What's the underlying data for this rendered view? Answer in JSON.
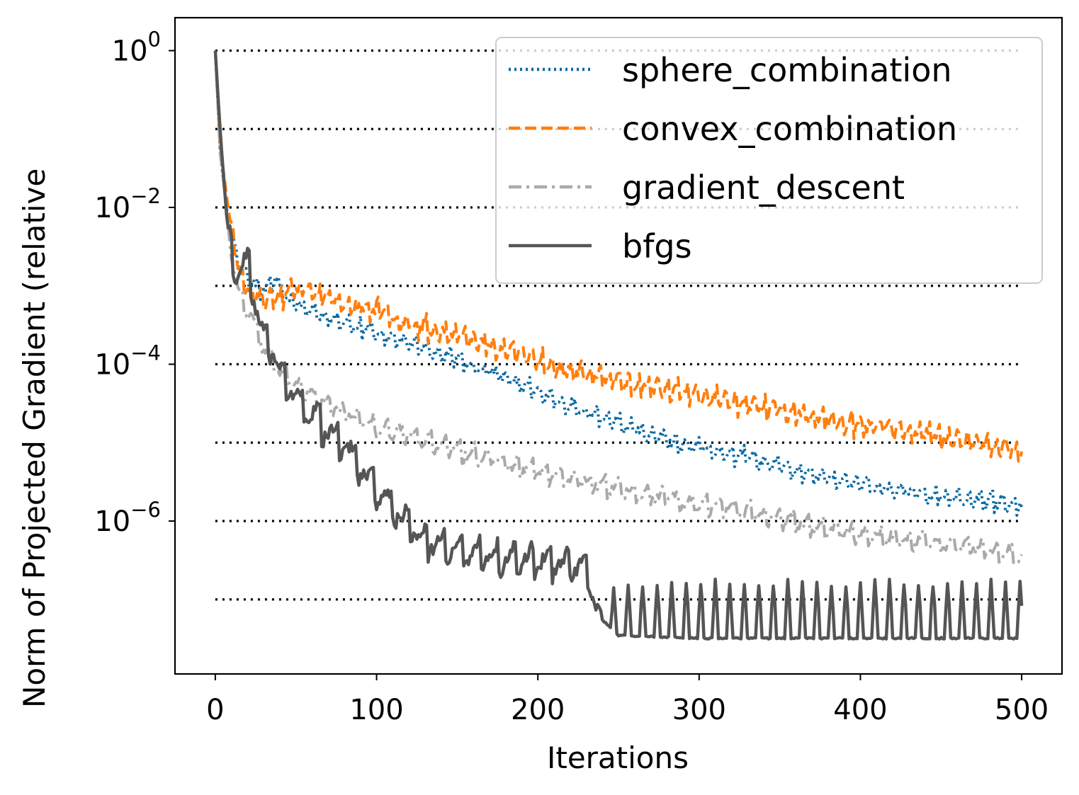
{
  "chart_data": {
    "type": "line",
    "title": "",
    "xlabel": "Iterations",
    "ylabel": "Norm of Projected Gradient (relative",
    "x_scale": "linear",
    "y_scale": "log",
    "xlim": [
      -25,
      525
    ],
    "ylim_exponent": [
      -7.95,
      0.42
    ],
    "x_ticks": [
      0,
      100,
      200,
      300,
      400,
      500
    ],
    "x_tick_labels": [
      "0",
      "100",
      "200",
      "300",
      "400",
      "500"
    ],
    "y_ticks": [
      1,
      0.01,
      0.0001,
      1e-06
    ],
    "y_tick_labels": [
      {
        "base": "10",
        "exp": "0"
      },
      {
        "base": "10",
        "exp": "−2"
      },
      {
        "base": "10",
        "exp": "−4"
      },
      {
        "base": "10",
        "exp": "−6"
      }
    ],
    "reference_lines": {
      "values": [
        1,
        0.1,
        0.01,
        0.001,
        0.0001,
        1e-05,
        1e-06,
        1e-07
      ],
      "x_range": [
        0,
        500
      ],
      "color": "#000000",
      "style": "dotted"
    },
    "legend_position": "upper-right",
    "series": [
      {
        "name": "sphere_combination",
        "color": "#0a6aa1",
        "style": "dotted",
        "anchors": [
          [
            0,
            1.0
          ],
          [
            3,
            0.05
          ],
          [
            7,
            0.01
          ],
          [
            12,
            0.003
          ],
          [
            20,
            0.0013
          ],
          [
            30,
            0.0009
          ],
          [
            37,
            0.0013
          ],
          [
            45,
            0.0007
          ],
          [
            60,
            0.0005
          ],
          [
            80,
            0.00035
          ],
          [
            100,
            0.00026
          ],
          [
            120,
            0.00019
          ],
          [
            150,
            0.00012
          ],
          [
            180,
            7e-05
          ],
          [
            200,
            4.5e-05
          ],
          [
            230,
            2.6e-05
          ],
          [
            260,
            1.5e-05
          ],
          [
            290,
            9.5e-06
          ],
          [
            320,
            7.5e-06
          ],
          [
            350,
            5.2e-06
          ],
          [
            380,
            3.6e-06
          ],
          [
            420,
            2.6e-06
          ],
          [
            460,
            2e-06
          ],
          [
            500,
            1.7e-06
          ]
        ],
        "noise": 0.13,
        "period": 7,
        "jitter": 0.06,
        "seed": 11
      },
      {
        "name": "convex_combination",
        "color": "#ff7f0e",
        "style": "dashed",
        "anchors": [
          [
            0,
            1.0
          ],
          [
            3,
            0.06
          ],
          [
            8,
            0.01
          ],
          [
            14,
            0.0018
          ],
          [
            20,
            0.0009
          ],
          [
            30,
            0.0007
          ],
          [
            50,
            0.0009
          ],
          [
            60,
            0.00085
          ],
          [
            80,
            0.0006
          ],
          [
            100,
            0.0005
          ],
          [
            120,
            0.00035
          ],
          [
            150,
            0.00024
          ],
          [
            180,
            0.00016
          ],
          [
            200,
            0.00012
          ],
          [
            220,
            8.5e-05
          ],
          [
            250,
            6.5e-05
          ],
          [
            280,
            5e-05
          ],
          [
            300,
            4.2e-05
          ],
          [
            330,
            3.2e-05
          ],
          [
            360,
            2.5e-05
          ],
          [
            400,
            1.8e-05
          ],
          [
            440,
            1.35e-05
          ],
          [
            480,
            9.5e-06
          ],
          [
            500,
            8.5e-06
          ]
        ],
        "noise": 0.16,
        "period": 6,
        "jitter": 0.07,
        "seed": 23
      },
      {
        "name": "gradient_descent",
        "color": "#aaaaaa",
        "style": "dashdot",
        "anchors": [
          [
            0,
            1.0
          ],
          [
            3,
            0.05
          ],
          [
            8,
            0.006
          ],
          [
            12,
            0.0015
          ],
          [
            17,
            0.0006
          ],
          [
            22,
            0.0004
          ],
          [
            30,
            0.00017
          ],
          [
            40,
            8e-05
          ],
          [
            50,
            5.5e-05
          ],
          [
            60,
            4e-05
          ],
          [
            80,
            2.5e-05
          ],
          [
            100,
            1.6e-05
          ],
          [
            120,
            1.3e-05
          ],
          [
            150,
            8.5e-06
          ],
          [
            180,
            5.5e-06
          ],
          [
            200,
            4.3e-06
          ],
          [
            230,
            3.3e-06
          ],
          [
            250,
            2.7e-06
          ],
          [
            300,
            1.7e-06
          ],
          [
            350,
            1.1e-06
          ],
          [
            400,
            7e-07
          ],
          [
            450,
            5.3e-07
          ],
          [
            500,
            3.7e-07
          ]
        ],
        "noise": 0.16,
        "period": 9,
        "jitter": 0.06,
        "seed": 37
      },
      {
        "name": "bfgs",
        "color": "#555555",
        "style": "solid",
        "anchors": [
          [
            0,
            1.0
          ],
          [
            2,
            0.2
          ],
          [
            4,
            0.05
          ],
          [
            7,
            0.008
          ],
          [
            10,
            0.0025
          ],
          [
            13,
            0.0015
          ],
          [
            17,
            0.002
          ],
          [
            20,
            0.0018
          ],
          [
            25,
            0.0006
          ],
          [
            30,
            0.00025
          ],
          [
            35,
            0.0002
          ],
          [
            40,
            8e-05
          ],
          [
            45,
            6e-05
          ],
          [
            50,
            4e-05
          ],
          [
            60,
            2.5e-05
          ],
          [
            70,
            1.5e-05
          ],
          [
            80,
            1e-05
          ],
          [
            90,
            5e-06
          ],
          [
            100,
            2.5e-06
          ],
          [
            110,
            1.5e-06
          ],
          [
            130,
            6e-07
          ],
          [
            150,
            4.5e-07
          ],
          [
            180,
            3.5e-07
          ],
          [
            200,
            3.5e-07
          ],
          [
            230,
            2.5e-07
          ],
          [
            238,
            6e-08
          ],
          [
            250,
            3.5e-08
          ],
          [
            300,
            3.2e-08
          ],
          [
            500,
            3.2e-08
          ]
        ],
        "noise": 0.3,
        "period": 11,
        "jitter": 0.08,
        "seed": 51,
        "spike_after_x": 238,
        "spike_every": 9,
        "spike_value": 1.6e-07
      }
    ]
  }
}
